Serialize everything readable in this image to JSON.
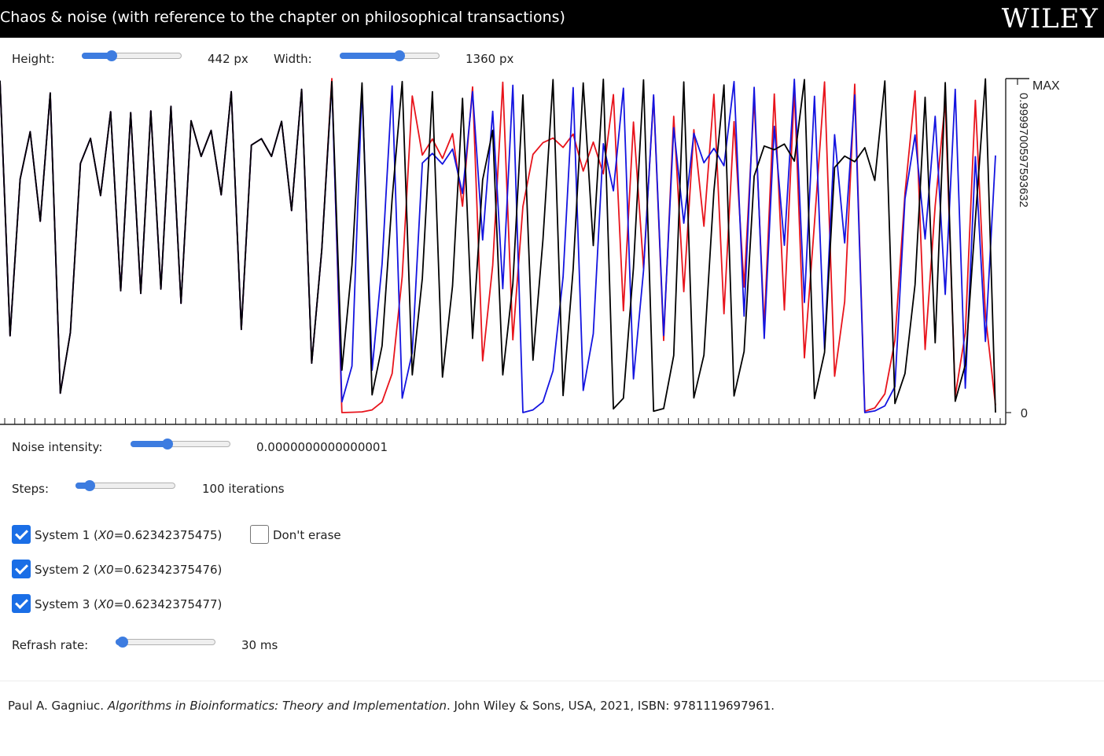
{
  "header": {
    "title": "Chaos & noise (with reference to the chapter on philosophical transactions)",
    "logo_text": "WILEY"
  },
  "controls": {
    "height": {
      "label": "Height:",
      "value_text": "442 px",
      "level": 0.3
    },
    "width": {
      "label": "Width:",
      "value_text": "1360 px",
      "level": 0.6
    },
    "noise": {
      "label": "Noise intensity:",
      "value_text": "0.0000000000000001",
      "level": 0.37
    },
    "steps": {
      "label": "Steps:",
      "value_text": "100 iterations",
      "level": 0.14
    },
    "refresh": {
      "label": "Refrash rate:",
      "value_text": "30 ms",
      "level": 0.07
    }
  },
  "systems": [
    {
      "label": "System 1 (",
      "var": "X0",
      "value": "=0.62342375475)",
      "checked": true
    },
    {
      "label": "System 2 (",
      "var": "X0",
      "value": "=0.62342375476)",
      "checked": true
    },
    {
      "label": "System 3 (",
      "var": "X0",
      "value": "=0.62342375477)",
      "checked": true
    }
  ],
  "dont_erase": {
    "label": "Don't erase",
    "checked": false
  },
  "citation": {
    "author": "Paul A. Gagniuc. ",
    "book": "Algorithms in Bioinformatics: Theory and Implementation",
    "rest": ". John Wiley & Sons, USA, 2021, ISBN: 9781119697961."
  },
  "chart_data": {
    "type": "line",
    "y_max_label": "MAX",
    "y_max_value_text": "0.9999700597593632",
    "y_min_label": "0",
    "ylim": [
      0,
      1
    ],
    "x_steps": 100,
    "colors": {
      "system1": "#e8141c",
      "system2": "#1414e0",
      "system3": "#000000"
    },
    "series": [
      {
        "values": [
          0.994,
          0.23,
          0.699,
          0.841,
          0.573,
          0.957,
          0.058,
          0.24,
          0.746,
          0.821,
          0.65,
          0.901,
          0.365,
          0.898,
          0.357,
          0.903,
          0.37,
          0.917,
          0.327,
          0.874,
          0.767,
          0.845,
          0.652,
          0.961,
          0.249,
          0.801,
          0.82,
          0.767,
          0.872,
          0.605,
          0.968,
          0.148,
          0.487,
          1.0,
          0.0,
          0.001,
          0.002,
          0.008,
          0.032,
          0.117,
          0.407,
          0.948,
          0.771,
          0.819,
          0.761,
          0.835,
          0.618,
          0.975,
          0.155,
          0.441,
          0.989,
          0.218,
          0.617,
          0.773,
          0.808,
          0.822,
          0.794,
          0.834,
          0.723,
          0.81,
          0.715,
          0.952,
          0.305,
          0.87,
          0.432,
          0.946,
          0.216,
          0.887,
          0.362,
          0.847,
          0.558,
          0.953,
          0.296,
          0.871,
          0.376,
          0.941,
          0.256,
          0.954,
          0.307,
          0.968,
          0.164,
          0.567,
          0.99,
          0.109,
          0.332,
          0.983,
          0.004,
          0.014,
          0.056,
          0.216,
          0.657,
          0.963,
          0.189,
          0.619,
          0.932,
          0.05,
          0.238,
          0.935,
          0.291,
          0.022
        ]
      },
      {
        "values": [
          0.994,
          0.23,
          0.699,
          0.841,
          0.573,
          0.957,
          0.058,
          0.24,
          0.746,
          0.821,
          0.65,
          0.901,
          0.365,
          0.898,
          0.357,
          0.903,
          0.37,
          0.917,
          0.327,
          0.874,
          0.767,
          0.845,
          0.652,
          0.961,
          0.249,
          0.801,
          0.82,
          0.767,
          0.872,
          0.605,
          0.968,
          0.148,
          0.487,
          0.987,
          0.032,
          0.139,
          0.972,
          0.127,
          0.445,
          0.978,
          0.043,
          0.18,
          0.747,
          0.776,
          0.744,
          0.789,
          0.656,
          0.961,
          0.517,
          0.902,
          0.371,
          0.98,
          0.0,
          0.008,
          0.032,
          0.125,
          0.406,
          0.973,
          0.066,
          0.236,
          0.805,
          0.664,
          0.971,
          0.101,
          0.425,
          0.951,
          0.231,
          0.853,
          0.567,
          0.836,
          0.748,
          0.791,
          0.739,
          0.991,
          0.289,
          0.974,
          0.222,
          0.857,
          0.501,
          0.998,
          0.33,
          0.947,
          0.19,
          0.832,
          0.508,
          0.951,
          0.0,
          0.005,
          0.02,
          0.078,
          0.64,
          0.831,
          0.52,
          0.887,
          0.354,
          0.968,
          0.073,
          0.766,
          0.213,
          0.77
        ]
      },
      {
        "values": [
          0.994,
          0.23,
          0.699,
          0.841,
          0.573,
          0.957,
          0.058,
          0.24,
          0.746,
          0.821,
          0.65,
          0.901,
          0.365,
          0.898,
          0.357,
          0.903,
          0.37,
          0.917,
          0.327,
          0.874,
          0.767,
          0.845,
          0.652,
          0.961,
          0.249,
          0.801,
          0.82,
          0.767,
          0.872,
          0.605,
          0.968,
          0.148,
          0.487,
          0.991,
          0.127,
          0.442,
          0.987,
          0.053,
          0.2,
          0.64,
          0.991,
          0.113,
          0.402,
          0.961,
          0.106,
          0.379,
          0.941,
          0.222,
          0.697,
          0.845,
          0.113,
          0.385,
          0.951,
          0.157,
          0.518,
          0.997,
          0.051,
          0.43,
          0.987,
          0.5,
          0.998,
          0.011,
          0.043,
          0.434,
          0.996,
          0.004,
          0.012,
          0.171,
          0.99,
          0.044,
          0.172,
          0.663,
          0.981,
          0.05,
          0.183,
          0.708,
          0.798,
          0.787,
          0.804,
          0.753,
          0.997,
          0.042,
          0.18,
          0.734,
          0.768,
          0.751,
          0.793,
          0.695,
          0.993,
          0.027,
          0.117,
          0.383,
          0.944,
          0.209,
          0.988,
          0.034,
          0.143,
          0.578,
          0.999,
          0.0
        ]
      }
    ]
  }
}
